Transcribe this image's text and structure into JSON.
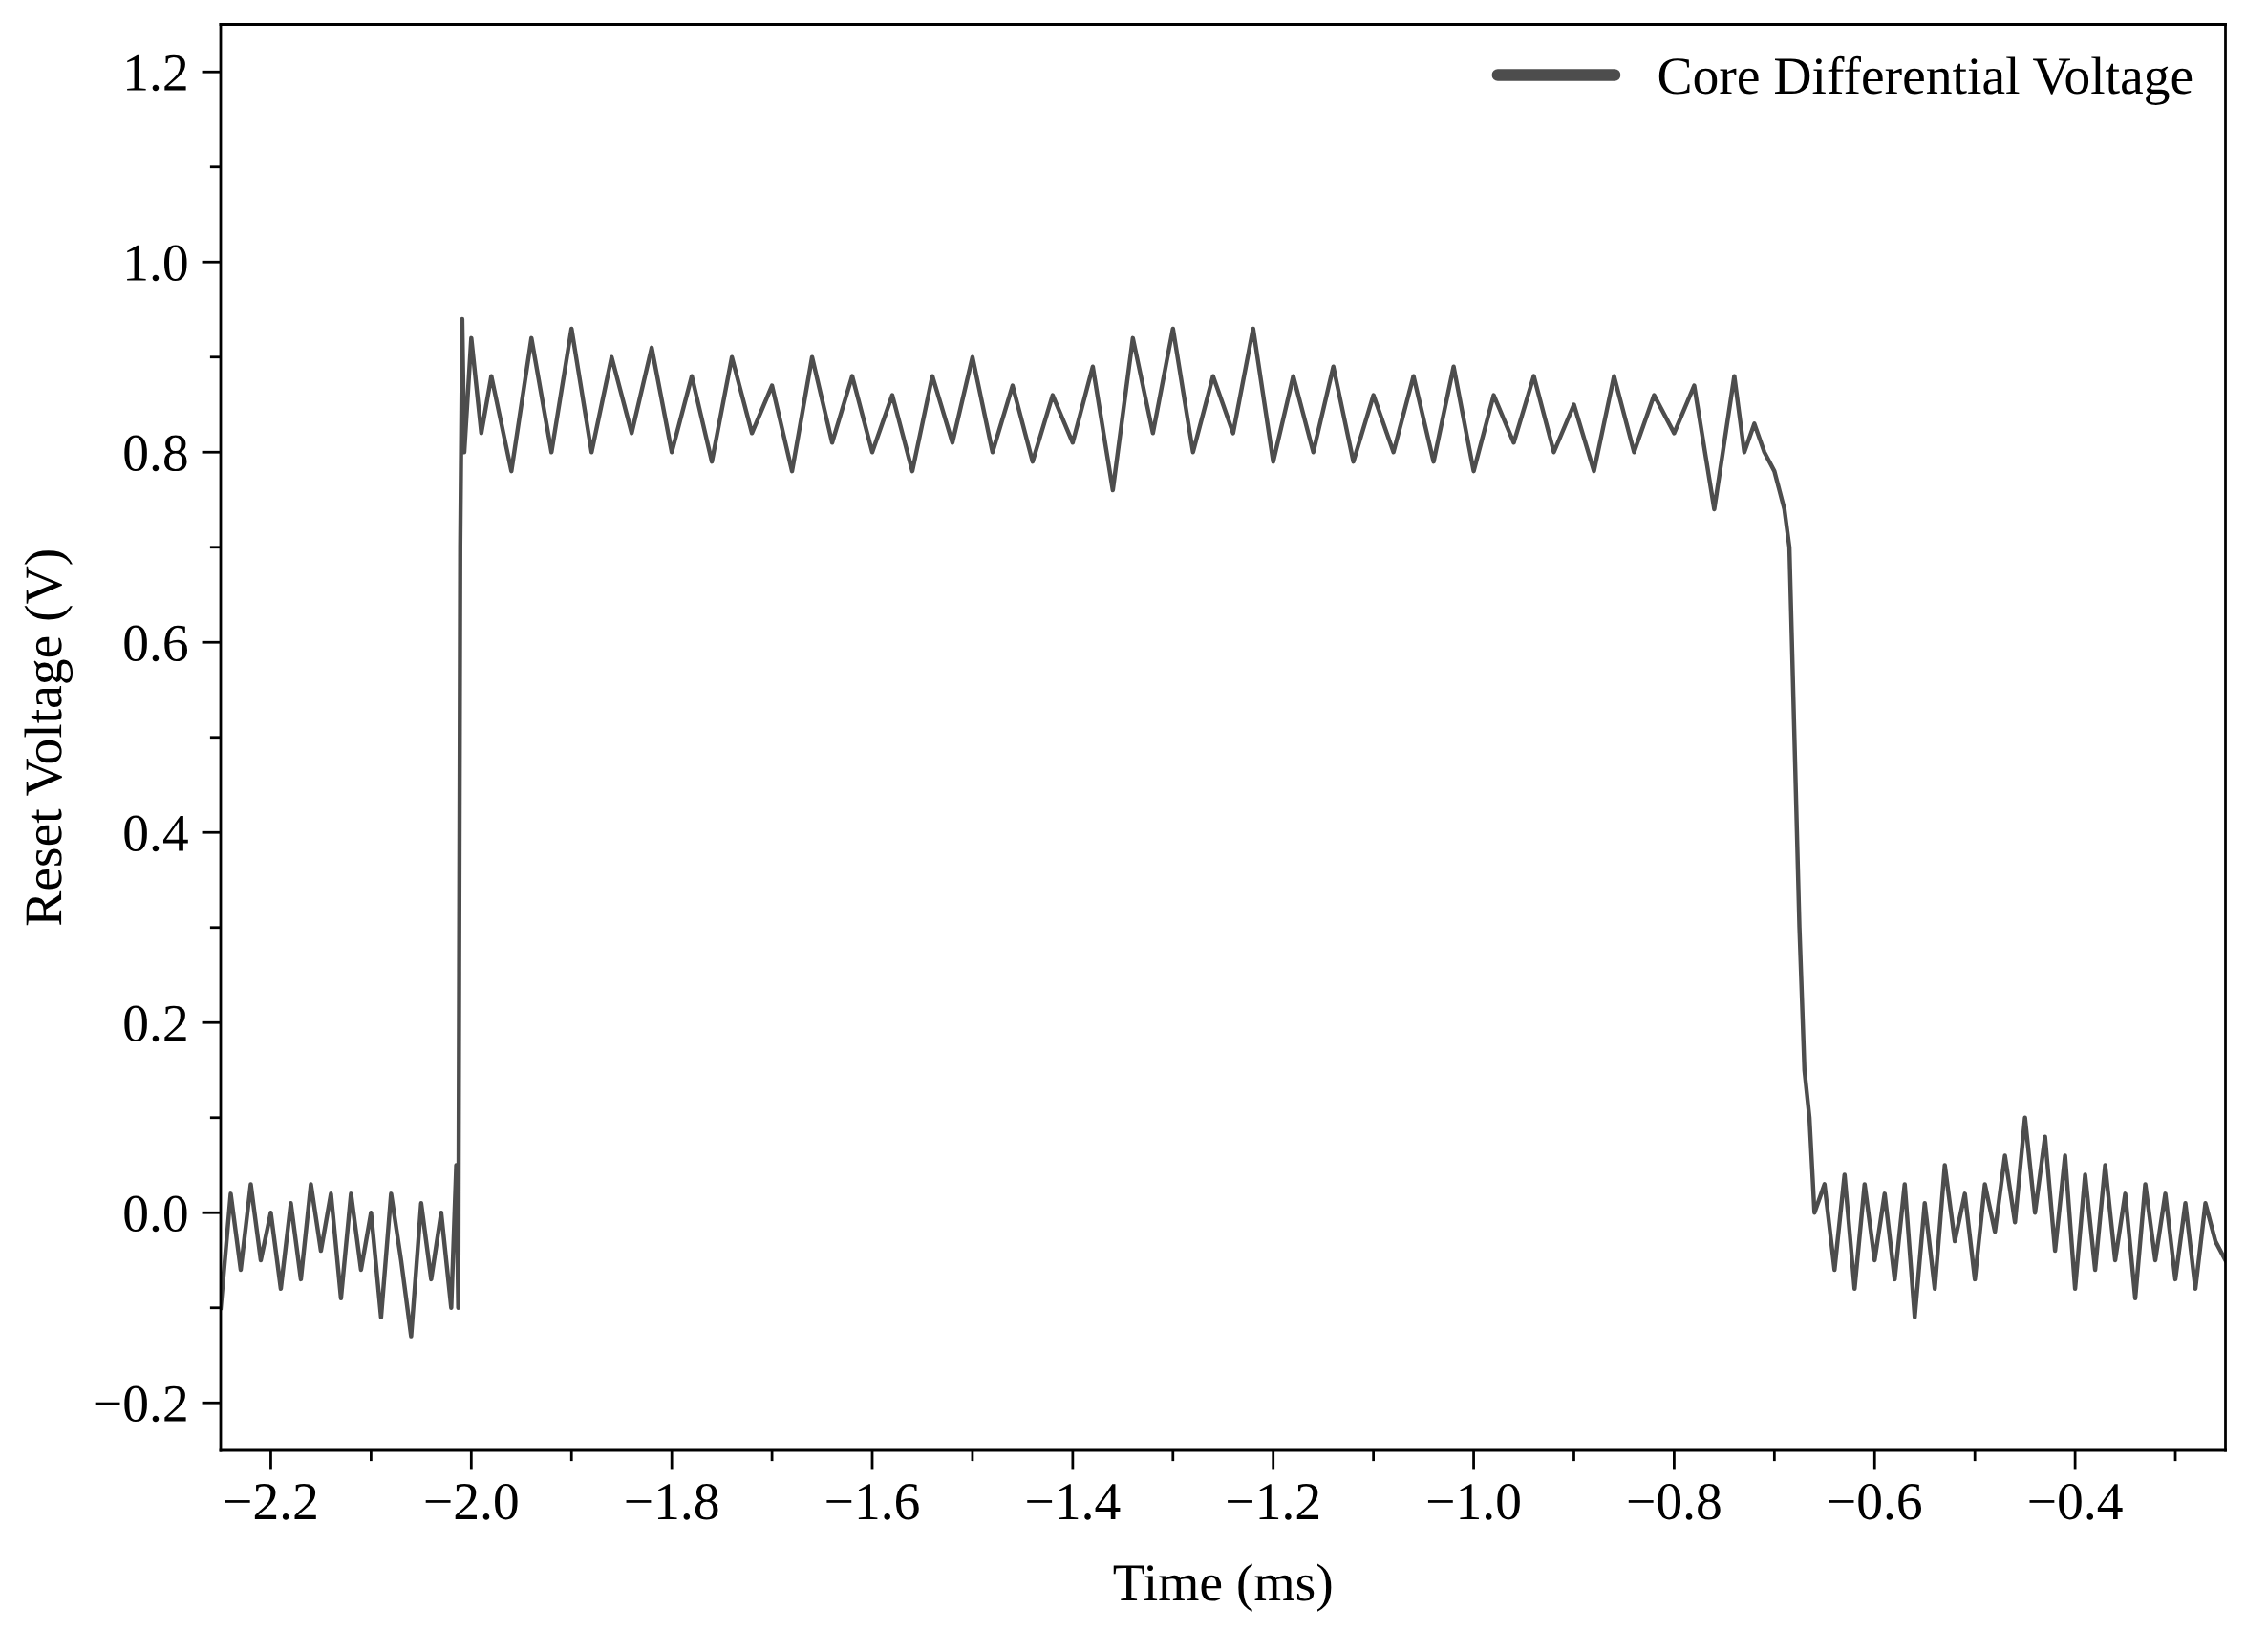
{
  "chart_data": {
    "type": "line",
    "xlabel": "Time (ms)",
    "ylabel": "Reset Voltage (V)",
    "xlim": [
      -2.25,
      -0.25
    ],
    "ylim": [
      -0.25,
      1.25
    ],
    "xticks": [
      {
        "value": -2.2,
        "label": "−2.2"
      },
      {
        "value": -2.1,
        "label": null
      },
      {
        "value": -2.0,
        "label": "−2.0"
      },
      {
        "value": -1.9,
        "label": null
      },
      {
        "value": -1.8,
        "label": "−1.8"
      },
      {
        "value": -1.7,
        "label": null
      },
      {
        "value": -1.6,
        "label": "−1.6"
      },
      {
        "value": -1.5,
        "label": null
      },
      {
        "value": -1.4,
        "label": "−1.4"
      },
      {
        "value": -1.3,
        "label": null
      },
      {
        "value": -1.2,
        "label": "−1.2"
      },
      {
        "value": -1.1,
        "label": null
      },
      {
        "value": -1.0,
        "label": "−1.0"
      },
      {
        "value": -0.9,
        "label": null
      },
      {
        "value": -0.8,
        "label": "−0.8"
      },
      {
        "value": -0.7,
        "label": null
      },
      {
        "value": -0.6,
        "label": "−0.6"
      },
      {
        "value": -0.5,
        "label": null
      },
      {
        "value": -0.4,
        "label": "−0.4"
      },
      {
        "value": -0.3,
        "label": null
      }
    ],
    "yticks": [
      {
        "value": -0.2,
        "label": "−0.2"
      },
      {
        "value": -0.1,
        "label": null
      },
      {
        "value": 0.0,
        "label": "0.0"
      },
      {
        "value": 0.1,
        "label": null
      },
      {
        "value": 0.2,
        "label": "0.2"
      },
      {
        "value": 0.3,
        "label": null
      },
      {
        "value": 0.4,
        "label": "0.4"
      },
      {
        "value": 0.5,
        "label": null
      },
      {
        "value": 0.6,
        "label": "0.6"
      },
      {
        "value": 0.7,
        "label": null
      },
      {
        "value": 0.8,
        "label": "0.8"
      },
      {
        "value": 0.9,
        "label": null
      },
      {
        "value": 1.0,
        "label": "1.0"
      },
      {
        "value": 1.1,
        "label": null
      },
      {
        "value": 1.2,
        "label": "1.2"
      }
    ],
    "legend": "top right",
    "grid": false,
    "marker": "none",
    "line_style": "solid",
    "series": [
      {
        "name": "Core Differential Voltage",
        "color": "#4d4d4d",
        "x": [
          -2.25,
          -2.24,
          -2.23,
          -2.22,
          -2.21,
          -2.2,
          -2.19,
          -2.18,
          -2.17,
          -2.16,
          -2.15,
          -2.14,
          -2.13,
          -2.12,
          -2.11,
          -2.1,
          -2.09,
          -2.08,
          -2.07,
          -2.06,
          -2.05,
          -2.04,
          -2.03,
          -2.02,
          -2.015,
          -2.013,
          -2.011,
          -2.009,
          -2.007,
          -2.0,
          -1.99,
          -1.98,
          -1.96,
          -1.94,
          -1.92,
          -1.9,
          -1.88,
          -1.86,
          -1.84,
          -1.82,
          -1.8,
          -1.78,
          -1.76,
          -1.74,
          -1.72,
          -1.7,
          -1.68,
          -1.66,
          -1.64,
          -1.62,
          -1.6,
          -1.58,
          -1.56,
          -1.54,
          -1.52,
          -1.5,
          -1.48,
          -1.46,
          -1.44,
          -1.42,
          -1.4,
          -1.38,
          -1.36,
          -1.34,
          -1.32,
          -1.3,
          -1.28,
          -1.26,
          -1.24,
          -1.22,
          -1.2,
          -1.18,
          -1.16,
          -1.14,
          -1.12,
          -1.1,
          -1.08,
          -1.06,
          -1.04,
          -1.02,
          -1.0,
          -0.98,
          -0.96,
          -0.94,
          -0.92,
          -0.9,
          -0.88,
          -0.86,
          -0.84,
          -0.82,
          -0.8,
          -0.78,
          -0.76,
          -0.74,
          -0.73,
          -0.72,
          -0.71,
          -0.7,
          -0.695,
          -0.69,
          -0.685,
          -0.68,
          -0.675,
          -0.67,
          -0.665,
          -0.66,
          -0.65,
          -0.64,
          -0.63,
          -0.62,
          -0.61,
          -0.6,
          -0.59,
          -0.58,
          -0.57,
          -0.56,
          -0.55,
          -0.54,
          -0.53,
          -0.52,
          -0.51,
          -0.5,
          -0.49,
          -0.48,
          -0.47,
          -0.46,
          -0.45,
          -0.44,
          -0.43,
          -0.42,
          -0.41,
          -0.4,
          -0.39,
          -0.38,
          -0.37,
          -0.36,
          -0.35,
          -0.34,
          -0.33,
          -0.32,
          -0.31,
          -0.3,
          -0.29,
          -0.28,
          -0.27,
          -0.26,
          -0.25
        ],
        "values": [
          -0.1,
          0.02,
          -0.06,
          0.03,
          -0.05,
          0.0,
          -0.08,
          0.01,
          -0.07,
          0.03,
          -0.04,
          0.02,
          -0.09,
          0.02,
          -0.06,
          0.0,
          -0.11,
          0.02,
          -0.05,
          -0.13,
          0.01,
          -0.07,
          0.0,
          -0.1,
          0.05,
          -0.1,
          0.7,
          0.94,
          0.8,
          0.92,
          0.82,
          0.88,
          0.78,
          0.92,
          0.8,
          0.93,
          0.8,
          0.9,
          0.82,
          0.91,
          0.8,
          0.88,
          0.79,
          0.9,
          0.82,
          0.87,
          0.78,
          0.9,
          0.81,
          0.88,
          0.8,
          0.86,
          0.78,
          0.88,
          0.81,
          0.9,
          0.8,
          0.87,
          0.79,
          0.86,
          0.81,
          0.89,
          0.76,
          0.92,
          0.82,
          0.93,
          0.8,
          0.88,
          0.82,
          0.93,
          0.79,
          0.88,
          0.8,
          0.89,
          0.79,
          0.86,
          0.8,
          0.88,
          0.79,
          0.89,
          0.78,
          0.86,
          0.81,
          0.88,
          0.8,
          0.85,
          0.78,
          0.88,
          0.8,
          0.86,
          0.82,
          0.87,
          0.74,
          0.88,
          0.8,
          0.83,
          0.8,
          0.78,
          0.76,
          0.74,
          0.7,
          0.5,
          0.3,
          0.15,
          0.1,
          0.0,
          0.03,
          -0.06,
          0.04,
          -0.08,
          0.03,
          -0.05,
          0.02,
          -0.07,
          0.03,
          -0.11,
          0.01,
          -0.08,
          0.05,
          -0.03,
          0.02,
          -0.07,
          0.03,
          -0.02,
          0.06,
          -0.01,
          0.1,
          0.0,
          0.08,
          -0.04,
          0.06,
          -0.08,
          0.04,
          -0.06,
          0.05,
          -0.05,
          0.02,
          -0.09,
          0.03,
          -0.05,
          0.02,
          -0.07,
          0.01,
          -0.08,
          0.01,
          -0.03,
          -0.05
        ]
      }
    ]
  }
}
